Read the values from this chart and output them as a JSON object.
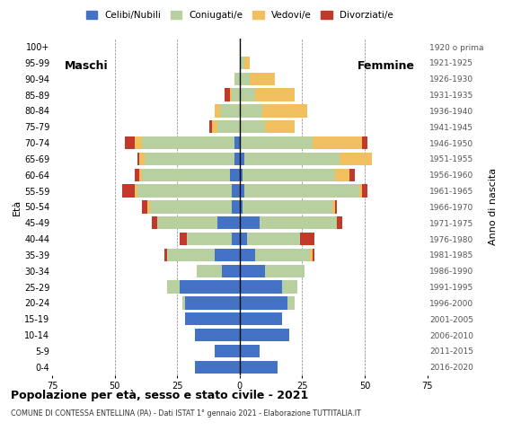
{
  "age_groups": [
    "0-4",
    "5-9",
    "10-14",
    "15-19",
    "20-24",
    "25-29",
    "30-34",
    "35-39",
    "40-44",
    "45-49",
    "50-54",
    "55-59",
    "60-64",
    "65-69",
    "70-74",
    "75-79",
    "80-84",
    "85-89",
    "90-94",
    "95-99",
    "100+"
  ],
  "birth_years": [
    "2016-2020",
    "2011-2015",
    "2006-2010",
    "2001-2005",
    "1996-2000",
    "1991-1995",
    "1986-1990",
    "1981-1985",
    "1976-1980",
    "1971-1975",
    "1966-1970",
    "1961-1965",
    "1956-1960",
    "1951-1955",
    "1946-1950",
    "1941-1945",
    "1936-1940",
    "1931-1935",
    "1926-1930",
    "1921-1925",
    "1920 o prima"
  ],
  "male": {
    "celibe": [
      18,
      10,
      18,
      22,
      22,
      24,
      7,
      10,
      3,
      9,
      3,
      3,
      4,
      2,
      2,
      0,
      0,
      0,
      0,
      0,
      0
    ],
    "coniugato": [
      0,
      0,
      0,
      0,
      1,
      5,
      10,
      19,
      18,
      24,
      33,
      38,
      35,
      36,
      37,
      9,
      8,
      3,
      2,
      0,
      0
    ],
    "vedovo": [
      0,
      0,
      0,
      0,
      0,
      0,
      0,
      0,
      0,
      0,
      1,
      1,
      1,
      2,
      3,
      2,
      2,
      1,
      0,
      0,
      0
    ],
    "divorziato": [
      0,
      0,
      0,
      0,
      0,
      0,
      0,
      1,
      3,
      2,
      2,
      5,
      2,
      1,
      4,
      1,
      0,
      2,
      0,
      0,
      0
    ]
  },
  "female": {
    "nubile": [
      15,
      8,
      20,
      17,
      19,
      17,
      10,
      6,
      3,
      8,
      1,
      2,
      1,
      2,
      0,
      0,
      0,
      0,
      0,
      0,
      0
    ],
    "coniugata": [
      0,
      0,
      0,
      0,
      3,
      6,
      16,
      22,
      21,
      31,
      36,
      46,
      37,
      38,
      29,
      10,
      9,
      6,
      4,
      2,
      0
    ],
    "vedova": [
      0,
      0,
      0,
      0,
      0,
      0,
      0,
      1,
      0,
      0,
      1,
      1,
      6,
      13,
      20,
      12,
      18,
      16,
      10,
      2,
      0
    ],
    "divorziata": [
      0,
      0,
      0,
      0,
      0,
      0,
      0,
      1,
      6,
      2,
      1,
      2,
      2,
      0,
      2,
      0,
      0,
      0,
      0,
      0,
      0
    ]
  },
  "colors": {
    "celibe_nubile": "#4472c4",
    "coniugato_a": "#b8cfa0",
    "vedovo_a": "#f0c060",
    "divorziato_a": "#c0392b"
  },
  "xlim": 75,
  "title": "Popolazione per età, sesso e stato civile - 2021",
  "subtitle": "COMUNE DI CONTESSA ENTELLINA (PA) - Dati ISTAT 1° gennaio 2021 - Elaborazione TUTTITALIA.IT",
  "legend_labels": [
    "Celibi/Nubili",
    "Coniugati/e",
    "Vedovi/e",
    "Divorziati/e"
  ],
  "xlabel_left": "Maschi",
  "xlabel_right": "Femmine",
  "ylabel_left": "Età",
  "ylabel_right": "Anno di nascita",
  "background_color": "#ffffff"
}
